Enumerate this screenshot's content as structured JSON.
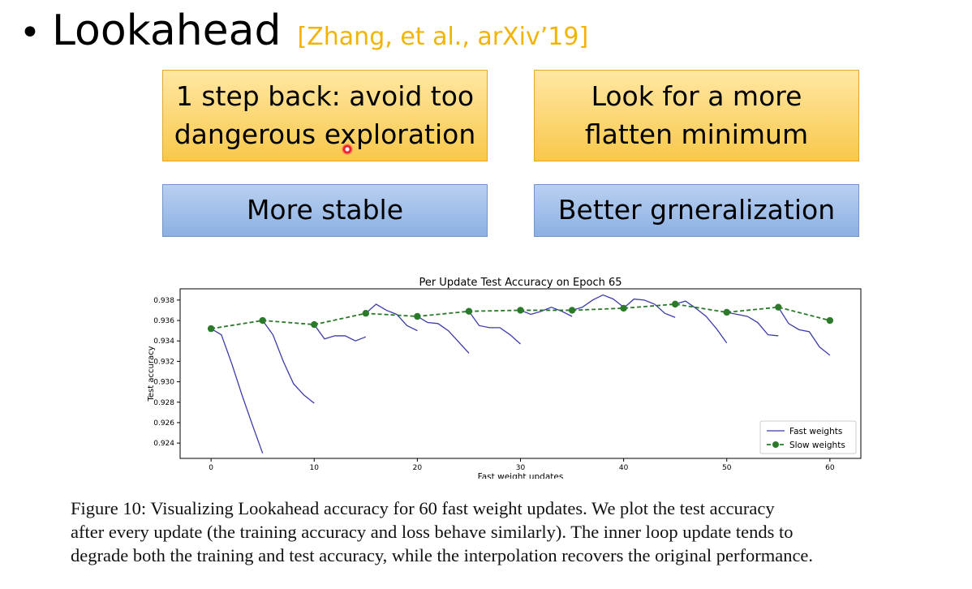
{
  "slide": {
    "bullet": "•",
    "title": "Lookahead",
    "citation": "[Zhang, et al., arXiv’19]",
    "colors": {
      "citation": "#f2b400",
      "yellow_box": "#f8c84a",
      "blue_box": "#8cb0e3"
    }
  },
  "boxes": {
    "box1_line1": "1 step back: avoid too",
    "box1_line2": "dangerous exploration",
    "box2_line1": "Look for a more",
    "box2_line2": "flatten minimum",
    "box3": "More stable",
    "box4": "Better grneralization"
  },
  "chart_data": {
    "type": "line",
    "title": "Per Update Test Accuracy on Epoch 65",
    "xlabel": "Fast weight updates",
    "ylabel": "Test accuracy",
    "xlim": [
      -3,
      63
    ],
    "ylim": [
      0.9225,
      0.9391
    ],
    "x_ticks": [
      0,
      10,
      20,
      30,
      40,
      50,
      60
    ],
    "y_ticks": [
      0.924,
      0.926,
      0.928,
      0.93,
      0.932,
      0.934,
      0.936,
      0.938
    ],
    "legend_position": "bottom-right",
    "series": [
      {
        "name": "Fast weights",
        "color": "#3b3ba8",
        "style": "solid",
        "segments": [
          [
            [
              0,
              0.9352
            ],
            [
              1,
              0.9346
            ],
            [
              2,
              0.9318
            ],
            [
              3,
              0.9287
            ],
            [
              4,
              0.9258
            ],
            [
              5,
              0.923
            ]
          ],
          [
            [
              5,
              0.936
            ],
            [
              6,
              0.9346
            ],
            [
              7,
              0.932
            ],
            [
              8,
              0.9298
            ],
            [
              9,
              0.9287
            ],
            [
              10,
              0.9279
            ]
          ],
          [
            [
              10,
              0.9356
            ],
            [
              11,
              0.9342
            ],
            [
              12,
              0.9345
            ],
            [
              13,
              0.9345
            ],
            [
              14,
              0.934
            ],
            [
              15,
              0.9344
            ]
          ],
          [
            [
              15,
              0.9367
            ],
            [
              16,
              0.9376
            ],
            [
              17,
              0.937
            ],
            [
              18,
              0.9366
            ],
            [
              19,
              0.9355
            ],
            [
              20,
              0.935
            ]
          ],
          [
            [
              20,
              0.9364
            ],
            [
              21,
              0.9358
            ],
            [
              22,
              0.9357
            ],
            [
              23,
              0.935
            ],
            [
              24,
              0.9339
            ],
            [
              25,
              0.9328
            ]
          ],
          [
            [
              25,
              0.9369
            ],
            [
              26,
              0.9355
            ],
            [
              27,
              0.9353
            ],
            [
              28,
              0.9353
            ],
            [
              29,
              0.9346
            ],
            [
              30,
              0.9337
            ]
          ],
          [
            [
              30,
              0.937
            ],
            [
              31,
              0.9366
            ],
            [
              32,
              0.9369
            ],
            [
              33,
              0.9373
            ],
            [
              34,
              0.9369
            ],
            [
              35,
              0.9364
            ]
          ],
          [
            [
              35,
              0.937
            ],
            [
              36,
              0.9373
            ],
            [
              37,
              0.938
            ],
            [
              38,
              0.9385
            ],
            [
              39,
              0.9381
            ],
            [
              40,
              0.9373
            ]
          ],
          [
            [
              40,
              0.9372
            ],
            [
              41,
              0.9381
            ],
            [
              42,
              0.938
            ],
            [
              43,
              0.9376
            ],
            [
              44,
              0.9367
            ],
            [
              45,
              0.9363
            ]
          ],
          [
            [
              45,
              0.9376
            ],
            [
              46,
              0.9379
            ],
            [
              47,
              0.9372
            ],
            [
              48,
              0.9364
            ],
            [
              49,
              0.9352
            ],
            [
              50,
              0.9338
            ]
          ],
          [
            [
              50,
              0.9368
            ],
            [
              51,
              0.9366
            ],
            [
              52,
              0.9364
            ],
            [
              53,
              0.9358
            ],
            [
              54,
              0.9346
            ],
            [
              55,
              0.9345
            ]
          ],
          [
            [
              55,
              0.9373
            ],
            [
              56,
              0.9357
            ],
            [
              57,
              0.9351
            ],
            [
              58,
              0.9349
            ],
            [
              59,
              0.9334
            ],
            [
              60,
              0.9326
            ]
          ]
        ]
      },
      {
        "name": "Slow weights",
        "color": "#2a7a2a",
        "style": "dashed",
        "x": [
          0,
          5,
          10,
          15,
          20,
          25,
          30,
          35,
          40,
          45,
          50,
          55,
          60
        ],
        "y": [
          0.9352,
          0.936,
          0.9356,
          0.9367,
          0.9364,
          0.9369,
          0.937,
          0.937,
          0.9372,
          0.9376,
          0.9368,
          0.9373,
          0.936
        ]
      }
    ]
  },
  "caption": {
    "line1": "Figure 10: Visualizing Lookahead accuracy for 60 fast weight updates. We plot the test accuracy",
    "line2": "after every update (the training accuracy and loss behave similarly). The inner loop update tends to",
    "line3": "degrade both the training and test accuracy, while the interpolation recovers the original performance."
  }
}
